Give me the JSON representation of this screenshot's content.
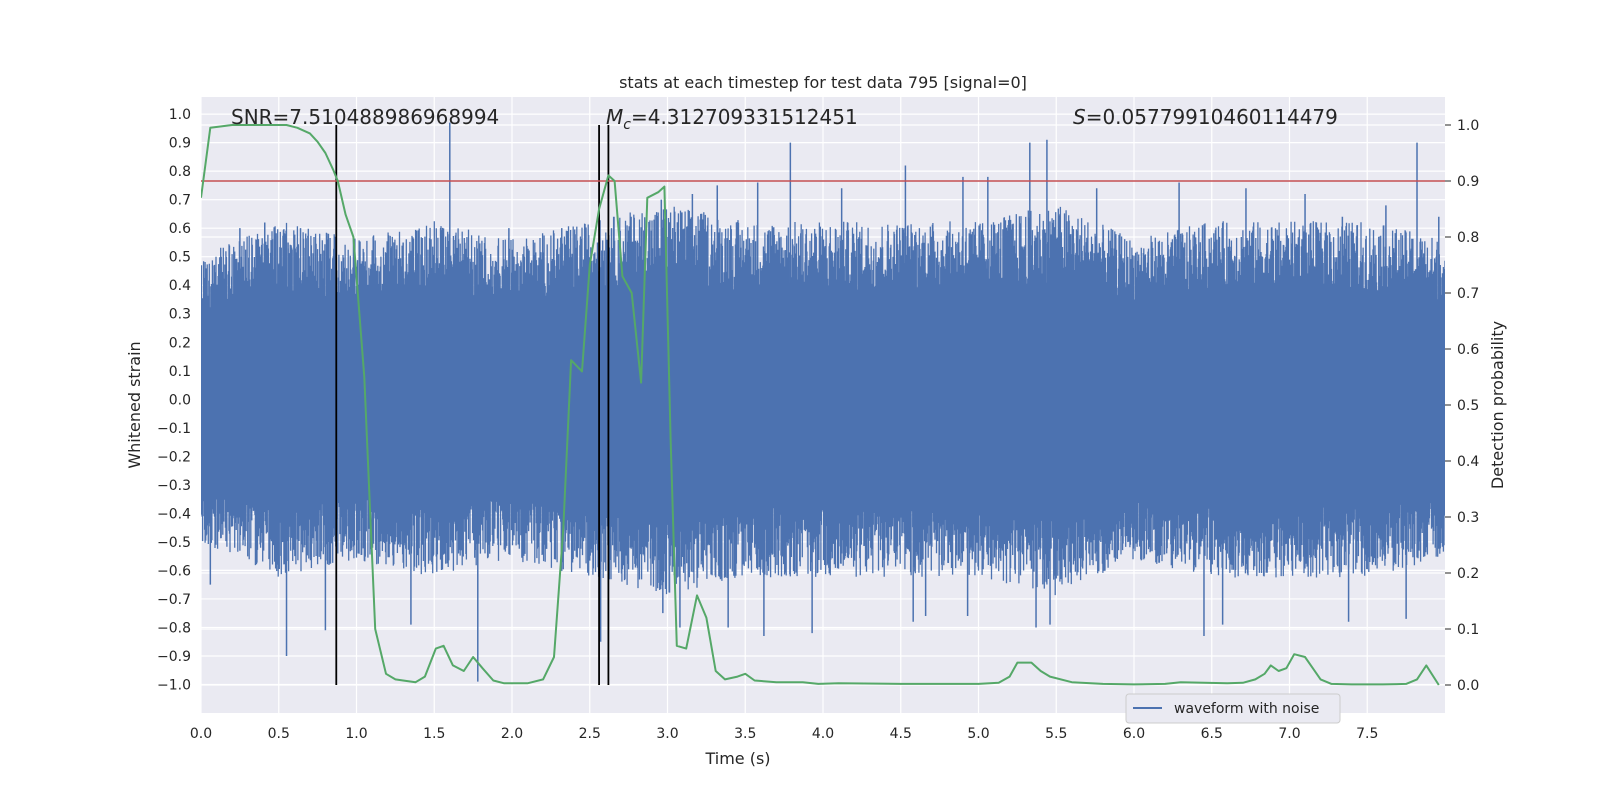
{
  "chart_data": {
    "type": "line",
    "title": "stats at each timestep for test data 795 [signal=0]",
    "xlabel": "Time (s)",
    "ylabel_left": "Whitened strain",
    "ylabel_right": "Detection probability",
    "xlim": [
      0.0,
      8.0
    ],
    "ylim_left": [
      -1.1,
      1.06
    ],
    "ylim_right": [
      -0.05,
      1.05
    ],
    "x_ticks": [
      "0.0",
      "0.5",
      "1.0",
      "1.5",
      "2.0",
      "2.5",
      "3.0",
      "3.5",
      "4.0",
      "4.5",
      "5.0",
      "5.5",
      "6.0",
      "6.5",
      "7.0",
      "7.5"
    ],
    "x_tick_values": [
      0.0,
      0.5,
      1.0,
      1.5,
      2.0,
      2.5,
      3.0,
      3.5,
      4.0,
      4.5,
      5.0,
      5.5,
      6.0,
      6.5,
      7.0,
      7.5
    ],
    "y_left_ticks": [
      "1.0",
      "0.9",
      "0.8",
      "0.7",
      "0.6",
      "0.5",
      "0.4",
      "0.3",
      "0.2",
      "0.1",
      "0.0",
      "−0.1",
      "−0.2",
      "−0.3",
      "−0.4",
      "−0.5",
      "−0.6",
      "−0.7",
      "−0.8",
      "−0.9",
      "−1.0"
    ],
    "y_left_tick_values": [
      1.0,
      0.9,
      0.8,
      0.7,
      0.6,
      0.5,
      0.4,
      0.3,
      0.2,
      0.1,
      0.0,
      -0.1,
      -0.2,
      -0.3,
      -0.4,
      -0.5,
      -0.6,
      -0.7,
      -0.8,
      -0.9,
      -1.0
    ],
    "y_right_ticks": [
      "1.0",
      "0.9",
      "0.8",
      "0.7",
      "0.6",
      "0.5",
      "0.4",
      "0.3",
      "0.2",
      "0.1",
      "0.0"
    ],
    "y_right_tick_values": [
      1.0,
      0.9,
      0.8,
      0.7,
      0.6,
      0.5,
      0.4,
      0.3,
      0.2,
      0.1,
      0.0
    ],
    "annotations": {
      "snr": "SNR=7.510488986968994",
      "mc_symbol": "M",
      "mc_sub": "c",
      "mc_value": "=4.312709331512451",
      "s_symbol": "S",
      "s_value": "=0.05779910460114479"
    },
    "threshold": {
      "value": 0.9,
      "axis": "right",
      "color": "#c44e52"
    },
    "vertical_lines": [
      0.87,
      2.56,
      2.62
    ],
    "waveform": {
      "name": "waveform with noise",
      "color": "#4c72b0",
      "envelope_upper": [
        [
          0.0,
          0.4
        ],
        [
          0.5,
          0.5
        ],
        [
          1.0,
          0.45
        ],
        [
          1.5,
          0.5
        ],
        [
          2.0,
          0.45
        ],
        [
          2.5,
          0.5
        ],
        [
          3.0,
          0.55
        ],
        [
          3.5,
          0.5
        ],
        [
          4.0,
          0.5
        ],
        [
          4.5,
          0.5
        ],
        [
          5.0,
          0.5
        ],
        [
          5.5,
          0.55
        ],
        [
          6.0,
          0.45
        ],
        [
          6.5,
          0.5
        ],
        [
          7.0,
          0.5
        ],
        [
          7.5,
          0.5
        ],
        [
          8.0,
          0.45
        ]
      ],
      "envelope_lower": [
        [
          0.0,
          -0.4
        ],
        [
          0.5,
          -0.5
        ],
        [
          1.0,
          -0.45
        ],
        [
          1.5,
          -0.5
        ],
        [
          2.0,
          -0.45
        ],
        [
          2.5,
          -0.5
        ],
        [
          3.0,
          -0.55
        ],
        [
          3.5,
          -0.5
        ],
        [
          4.0,
          -0.5
        ],
        [
          4.5,
          -0.5
        ],
        [
          5.0,
          -0.5
        ],
        [
          5.5,
          -0.55
        ],
        [
          6.0,
          -0.45
        ],
        [
          6.5,
          -0.5
        ],
        [
          7.0,
          -0.5
        ],
        [
          7.5,
          -0.5
        ],
        [
          8.0,
          -0.45
        ]
      ],
      "peaks": [
        [
          0.13,
          0.5
        ],
        [
          0.25,
          0.6
        ],
        [
          0.41,
          0.62
        ],
        [
          0.56,
          0.55
        ],
        [
          0.64,
          0.6
        ],
        [
          0.86,
          0.57
        ],
        [
          1.3,
          0.55
        ],
        [
          1.6,
          0.97
        ],
        [
          1.98,
          0.6
        ],
        [
          2.32,
          0.6
        ],
        [
          2.55,
          0.55
        ],
        [
          2.64,
          0.6
        ],
        [
          2.96,
          0.7
        ],
        [
          3.16,
          0.72
        ],
        [
          3.32,
          0.75
        ],
        [
          3.58,
          0.76
        ],
        [
          3.79,
          0.9
        ],
        [
          4.12,
          0.74
        ],
        [
          4.53,
          0.82
        ],
        [
          4.9,
          0.78
        ],
        [
          5.06,
          0.78
        ],
        [
          5.33,
          0.9
        ],
        [
          5.44,
          0.91
        ],
        [
          5.76,
          0.74
        ],
        [
          6.29,
          0.76
        ],
        [
          6.72,
          0.74
        ],
        [
          7.1,
          0.72
        ],
        [
          7.34,
          0.64
        ],
        [
          7.62,
          0.68
        ],
        [
          7.82,
          0.9
        ],
        [
          7.96,
          0.64
        ]
      ],
      "troughs": [
        [
          0.06,
          -0.65
        ],
        [
          0.55,
          -0.9
        ],
        [
          0.8,
          -0.81
        ],
        [
          1.35,
          -0.79
        ],
        [
          1.78,
          -0.99
        ],
        [
          2.57,
          -0.85
        ],
        [
          2.97,
          -0.75
        ],
        [
          3.08,
          -0.8
        ],
        [
          3.39,
          -0.8
        ],
        [
          3.62,
          -0.83
        ],
        [
          3.93,
          -0.82
        ],
        [
          4.58,
          -0.78
        ],
        [
          4.66,
          -0.76
        ],
        [
          4.93,
          -0.76
        ],
        [
          5.37,
          -0.8
        ],
        [
          5.46,
          -0.79
        ],
        [
          6.45,
          -0.83
        ],
        [
          6.57,
          -0.79
        ],
        [
          7.38,
          -0.78
        ],
        [
          7.75,
          -0.77
        ]
      ]
    },
    "probability": {
      "name": "detection probability",
      "color": "#55a868",
      "x": [
        0.0,
        0.06,
        0.2,
        0.4,
        0.55,
        0.62,
        0.7,
        0.75,
        0.8,
        0.85,
        0.88,
        0.93,
        0.98,
        1.05,
        1.12,
        1.19,
        1.25,
        1.3,
        1.38,
        1.44,
        1.51,
        1.56,
        1.62,
        1.69,
        1.75,
        1.81,
        1.88,
        1.95,
        2.1,
        2.2,
        2.27,
        2.33,
        2.38,
        2.45,
        2.5,
        2.56,
        2.62,
        2.66,
        2.71,
        2.77,
        2.83,
        2.87,
        2.94,
        2.98,
        3.02,
        3.06,
        3.12,
        3.19,
        3.25,
        3.31,
        3.37,
        3.45,
        3.5,
        3.56,
        3.7,
        3.87,
        3.97,
        4.1,
        4.5,
        4.8,
        5.0,
        5.13,
        5.2,
        5.25,
        5.3,
        5.34,
        5.4,
        5.46,
        5.6,
        5.8,
        6.0,
        6.2,
        6.3,
        6.45,
        6.6,
        6.7,
        6.78,
        6.84,
        6.88,
        6.93,
        6.98,
        7.03,
        7.1,
        7.15,
        7.2,
        7.27,
        7.4,
        7.6,
        7.75,
        7.82,
        7.88,
        7.96
      ],
      "y": [
        0.87,
        0.995,
        1.0,
        1.0,
        1.0,
        0.995,
        0.985,
        0.97,
        0.95,
        0.92,
        0.9,
        0.84,
        0.8,
        0.55,
        0.1,
        0.02,
        0.01,
        0.008,
        0.005,
        0.015,
        0.065,
        0.07,
        0.035,
        0.025,
        0.05,
        0.03,
        0.008,
        0.003,
        0.003,
        0.01,
        0.05,
        0.28,
        0.58,
        0.56,
        0.75,
        0.85,
        0.91,
        0.9,
        0.73,
        0.7,
        0.54,
        0.87,
        0.88,
        0.89,
        0.44,
        0.07,
        0.065,
        0.16,
        0.12,
        0.025,
        0.01,
        0.015,
        0.02,
        0.008,
        0.005,
        0.005,
        0.002,
        0.003,
        0.002,
        0.002,
        0.002,
        0.004,
        0.015,
        0.04,
        0.04,
        0.04,
        0.025,
        0.015,
        0.005,
        0.002,
        0.001,
        0.002,
        0.005,
        0.004,
        0.003,
        0.004,
        0.01,
        0.02,
        0.035,
        0.025,
        0.03,
        0.055,
        0.05,
        0.03,
        0.01,
        0.002,
        0.001,
        0.001,
        0.002,
        0.01,
        0.035,
        0.0
      ]
    },
    "legend": {
      "label": "waveform with noise",
      "position": "lower-right"
    }
  }
}
